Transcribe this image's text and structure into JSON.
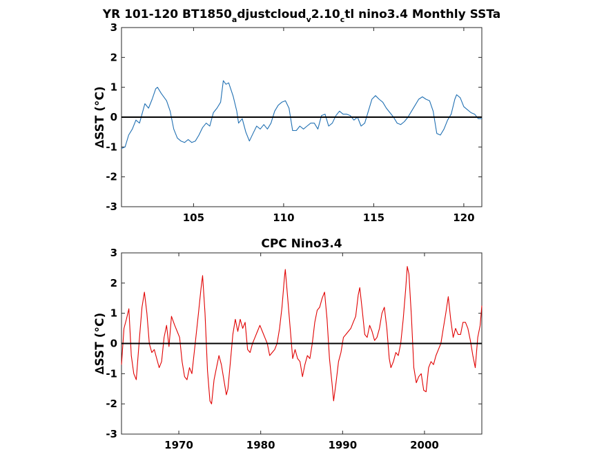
{
  "chart_data": [
    {
      "type": "line",
      "title": {
        "parts": [
          {
            "t": "YR 101-120 BT1850",
            "sub": false
          },
          {
            "t": "a",
            "sub": true
          },
          {
            "t": "djustcloud",
            "sub": false
          },
          {
            "t": "v",
            "sub": true
          },
          {
            "t": "2.10",
            "sub": false
          },
          {
            "t": "c",
            "sub": true
          },
          {
            "t": "tl nino3.4 Monthly SSTa",
            "sub": false
          }
        ]
      },
      "ylabel": "∆SST (°C)",
      "xlim": [
        101,
        121
      ],
      "ylim": [
        -3,
        3
      ],
      "xticks": [
        105,
        110,
        115,
        120
      ],
      "yticks": [
        -3,
        -2,
        -1,
        0,
        1,
        2,
        3
      ],
      "zero_line": true,
      "series": [
        {
          "color": "#1f6fb2",
          "points": [
            [
              101.0,
              -1.05
            ],
            [
              101.2,
              -1.0
            ],
            [
              101.4,
              -0.6
            ],
            [
              101.6,
              -0.4
            ],
            [
              101.8,
              -0.1
            ],
            [
              102.0,
              -0.2
            ],
            [
              102.3,
              0.45
            ],
            [
              102.5,
              0.3
            ],
            [
              102.7,
              0.6
            ],
            [
              102.9,
              0.95
            ],
            [
              103.0,
              1.0
            ],
            [
              103.2,
              0.8
            ],
            [
              103.5,
              0.55
            ],
            [
              103.7,
              0.2
            ],
            [
              103.9,
              -0.4
            ],
            [
              104.1,
              -0.7
            ],
            [
              104.3,
              -0.8
            ],
            [
              104.5,
              -0.85
            ],
            [
              104.7,
              -0.75
            ],
            [
              104.9,
              -0.85
            ],
            [
              105.1,
              -0.8
            ],
            [
              105.3,
              -0.6
            ],
            [
              105.5,
              -0.35
            ],
            [
              105.7,
              -0.2
            ],
            [
              105.9,
              -0.3
            ],
            [
              106.1,
              0.15
            ],
            [
              106.3,
              0.3
            ],
            [
              106.5,
              0.5
            ],
            [
              106.65,
              1.22
            ],
            [
              106.8,
              1.1
            ],
            [
              106.95,
              1.15
            ],
            [
              107.2,
              0.7
            ],
            [
              107.4,
              0.2
            ],
            [
              107.5,
              -0.2
            ],
            [
              107.7,
              -0.05
            ],
            [
              107.9,
              -0.5
            ],
            [
              108.1,
              -0.8
            ],
            [
              108.3,
              -0.55
            ],
            [
              108.5,
              -0.3
            ],
            [
              108.7,
              -0.4
            ],
            [
              108.9,
              -0.25
            ],
            [
              109.1,
              -0.4
            ],
            [
              109.3,
              -0.2
            ],
            [
              109.5,
              0.2
            ],
            [
              109.7,
              0.4
            ],
            [
              109.9,
              0.5
            ],
            [
              110.1,
              0.55
            ],
            [
              110.3,
              0.3
            ],
            [
              110.5,
              -0.45
            ],
            [
              110.7,
              -0.45
            ],
            [
              110.9,
              -0.3
            ],
            [
              111.1,
              -0.4
            ],
            [
              111.3,
              -0.3
            ],
            [
              111.5,
              -0.2
            ],
            [
              111.7,
              -0.2
            ],
            [
              111.9,
              -0.4
            ],
            [
              112.1,
              0.05
            ],
            [
              112.3,
              0.1
            ],
            [
              112.5,
              -0.3
            ],
            [
              112.7,
              -0.2
            ],
            [
              112.9,
              0.05
            ],
            [
              113.1,
              0.2
            ],
            [
              113.3,
              0.1
            ],
            [
              113.5,
              0.1
            ],
            [
              113.7,
              0.05
            ],
            [
              113.9,
              -0.1
            ],
            [
              114.1,
              0.0
            ],
            [
              114.3,
              -0.3
            ],
            [
              114.5,
              -0.2
            ],
            [
              114.7,
              0.2
            ],
            [
              114.9,
              0.6
            ],
            [
              115.1,
              0.72
            ],
            [
              115.3,
              0.6
            ],
            [
              115.5,
              0.5
            ],
            [
              115.7,
              0.3
            ],
            [
              115.9,
              0.15
            ],
            [
              116.1,
              0.0
            ],
            [
              116.3,
              -0.2
            ],
            [
              116.5,
              -0.25
            ],
            [
              116.7,
              -0.15
            ],
            [
              116.9,
              0.0
            ],
            [
              117.1,
              0.2
            ],
            [
              117.3,
              0.4
            ],
            [
              117.5,
              0.6
            ],
            [
              117.7,
              0.68
            ],
            [
              117.9,
              0.6
            ],
            [
              118.1,
              0.55
            ],
            [
              118.3,
              0.2
            ],
            [
              118.5,
              -0.55
            ],
            [
              118.7,
              -0.6
            ],
            [
              118.9,
              -0.4
            ],
            [
              119.1,
              -0.1
            ],
            [
              119.3,
              0.1
            ],
            [
              119.5,
              0.6
            ],
            [
              119.6,
              0.75
            ],
            [
              119.8,
              0.65
            ],
            [
              120.0,
              0.35
            ],
            [
              120.2,
              0.25
            ],
            [
              120.4,
              0.15
            ],
            [
              120.6,
              0.1
            ],
            [
              120.8,
              -0.05
            ],
            [
              121.0,
              -0.05
            ]
          ]
        }
      ]
    },
    {
      "type": "line",
      "title": {
        "parts": [
          {
            "t": "CPC Nino3.4",
            "sub": false
          }
        ]
      },
      "ylabel": "∆SST (°C)",
      "xlim": [
        1963,
        2007
      ],
      "ylim": [
        -3,
        3
      ],
      "xticks": [
        1970,
        1980,
        1990,
        2000
      ],
      "yticks": [
        -3,
        -2,
        -1,
        0,
        1,
        2,
        3
      ],
      "zero_line": true,
      "series": [
        {
          "color": "#e00000",
          "points": [
            [
              1963.0,
              -0.7
            ],
            [
              1963.3,
              0.5
            ],
            [
              1963.6,
              0.8
            ],
            [
              1963.9,
              1.15
            ],
            [
              1964.2,
              -0.4
            ],
            [
              1964.5,
              -1.0
            ],
            [
              1964.8,
              -1.2
            ],
            [
              1965.2,
              0.2
            ],
            [
              1965.5,
              1.2
            ],
            [
              1965.8,
              1.7
            ],
            [
              1966.1,
              1.0
            ],
            [
              1966.4,
              0.0
            ],
            [
              1966.7,
              -0.3
            ],
            [
              1967.0,
              -0.2
            ],
            [
              1967.3,
              -0.5
            ],
            [
              1967.6,
              -0.8
            ],
            [
              1967.9,
              -0.6
            ],
            [
              1968.2,
              0.2
            ],
            [
              1968.5,
              0.6
            ],
            [
              1968.8,
              -0.1
            ],
            [
              1969.1,
              0.9
            ],
            [
              1969.5,
              0.6
            ],
            [
              1969.8,
              0.4
            ],
            [
              1970.1,
              0.2
            ],
            [
              1970.4,
              -0.6
            ],
            [
              1970.7,
              -1.1
            ],
            [
              1971.0,
              -1.2
            ],
            [
              1971.3,
              -0.8
            ],
            [
              1971.6,
              -1.0
            ],
            [
              1972.0,
              0.0
            ],
            [
              1972.4,
              1.0
            ],
            [
              1972.7,
              1.8
            ],
            [
              1972.9,
              2.25
            ],
            [
              1973.2,
              1.0
            ],
            [
              1973.5,
              -0.9
            ],
            [
              1973.8,
              -1.9
            ],
            [
              1974.0,
              -2.0
            ],
            [
              1974.3,
              -1.2
            ],
            [
              1974.6,
              -0.8
            ],
            [
              1974.9,
              -0.4
            ],
            [
              1975.2,
              -0.7
            ],
            [
              1975.5,
              -1.2
            ],
            [
              1975.8,
              -1.7
            ],
            [
              1976.0,
              -1.5
            ],
            [
              1976.3,
              -0.6
            ],
            [
              1976.6,
              0.3
            ],
            [
              1976.9,
              0.8
            ],
            [
              1977.2,
              0.4
            ],
            [
              1977.5,
              0.8
            ],
            [
              1977.8,
              0.5
            ],
            [
              1978.1,
              0.7
            ],
            [
              1978.4,
              -0.2
            ],
            [
              1978.7,
              -0.3
            ],
            [
              1979.0,
              0.0
            ],
            [
              1979.3,
              0.2
            ],
            [
              1979.6,
              0.4
            ],
            [
              1979.9,
              0.6
            ],
            [
              1980.2,
              0.4
            ],
            [
              1980.5,
              0.2
            ],
            [
              1980.8,
              0.0
            ],
            [
              1981.1,
              -0.4
            ],
            [
              1981.4,
              -0.3
            ],
            [
              1981.7,
              -0.2
            ],
            [
              1982.0,
              0.0
            ],
            [
              1982.3,
              0.5
            ],
            [
              1982.6,
              1.2
            ],
            [
              1982.9,
              2.2
            ],
            [
              1983.0,
              2.45
            ],
            [
              1983.3,
              1.5
            ],
            [
              1983.6,
              0.5
            ],
            [
              1983.9,
              -0.5
            ],
            [
              1984.2,
              -0.2
            ],
            [
              1984.5,
              -0.5
            ],
            [
              1984.8,
              -0.6
            ],
            [
              1985.1,
              -1.1
            ],
            [
              1985.4,
              -0.7
            ],
            [
              1985.7,
              -0.4
            ],
            [
              1986.0,
              -0.5
            ],
            [
              1986.3,
              0.0
            ],
            [
              1986.6,
              0.7
            ],
            [
              1986.9,
              1.1
            ],
            [
              1987.2,
              1.2
            ],
            [
              1987.5,
              1.5
            ],
            [
              1987.8,
              1.7
            ],
            [
              1988.1,
              0.8
            ],
            [
              1988.4,
              -0.5
            ],
            [
              1988.7,
              -1.3
            ],
            [
              1988.9,
              -1.9
            ],
            [
              1989.2,
              -1.3
            ],
            [
              1989.5,
              -0.6
            ],
            [
              1989.8,
              -0.3
            ],
            [
              1990.1,
              0.2
            ],
            [
              1990.4,
              0.3
            ],
            [
              1990.7,
              0.4
            ],
            [
              1991.0,
              0.5
            ],
            [
              1991.3,
              0.7
            ],
            [
              1991.6,
              0.9
            ],
            [
              1991.9,
              1.6
            ],
            [
              1992.1,
              1.85
            ],
            [
              1992.4,
              1.1
            ],
            [
              1992.7,
              0.3
            ],
            [
              1993.0,
              0.2
            ],
            [
              1993.3,
              0.6
            ],
            [
              1993.6,
              0.4
            ],
            [
              1993.9,
              0.1
            ],
            [
              1994.2,
              0.2
            ],
            [
              1994.5,
              0.5
            ],
            [
              1994.8,
              1.0
            ],
            [
              1995.1,
              1.2
            ],
            [
              1995.4,
              0.5
            ],
            [
              1995.7,
              -0.5
            ],
            [
              1995.9,
              -0.8
            ],
            [
              1996.2,
              -0.6
            ],
            [
              1996.5,
              -0.3
            ],
            [
              1996.8,
              -0.4
            ],
            [
              1997.1,
              0.0
            ],
            [
              1997.4,
              0.8
            ],
            [
              1997.7,
              1.8
            ],
            [
              1997.9,
              2.55
            ],
            [
              1998.1,
              2.3
            ],
            [
              1998.4,
              0.9
            ],
            [
              1998.7,
              -0.8
            ],
            [
              1999.0,
              -1.3
            ],
            [
              1999.3,
              -1.1
            ],
            [
              1999.6,
              -1.0
            ],
            [
              1999.9,
              -1.55
            ],
            [
              2000.2,
              -1.6
            ],
            [
              2000.5,
              -0.8
            ],
            [
              2000.8,
              -0.6
            ],
            [
              2001.1,
              -0.7
            ],
            [
              2001.4,
              -0.4
            ],
            [
              2001.7,
              -0.2
            ],
            [
              2002.0,
              0.0
            ],
            [
              2002.3,
              0.5
            ],
            [
              2002.6,
              1.0
            ],
            [
              2002.9,
              1.55
            ],
            [
              2003.2,
              0.8
            ],
            [
              2003.5,
              0.2
            ],
            [
              2003.8,
              0.5
            ],
            [
              2004.1,
              0.3
            ],
            [
              2004.4,
              0.3
            ],
            [
              2004.7,
              0.7
            ],
            [
              2005.0,
              0.7
            ],
            [
              2005.3,
              0.5
            ],
            [
              2005.6,
              0.1
            ],
            [
              2005.9,
              -0.4
            ],
            [
              2006.2,
              -0.8
            ],
            [
              2006.5,
              0.2
            ],
            [
              2006.8,
              0.6
            ],
            [
              2007.0,
              1.25
            ]
          ]
        }
      ]
    }
  ]
}
